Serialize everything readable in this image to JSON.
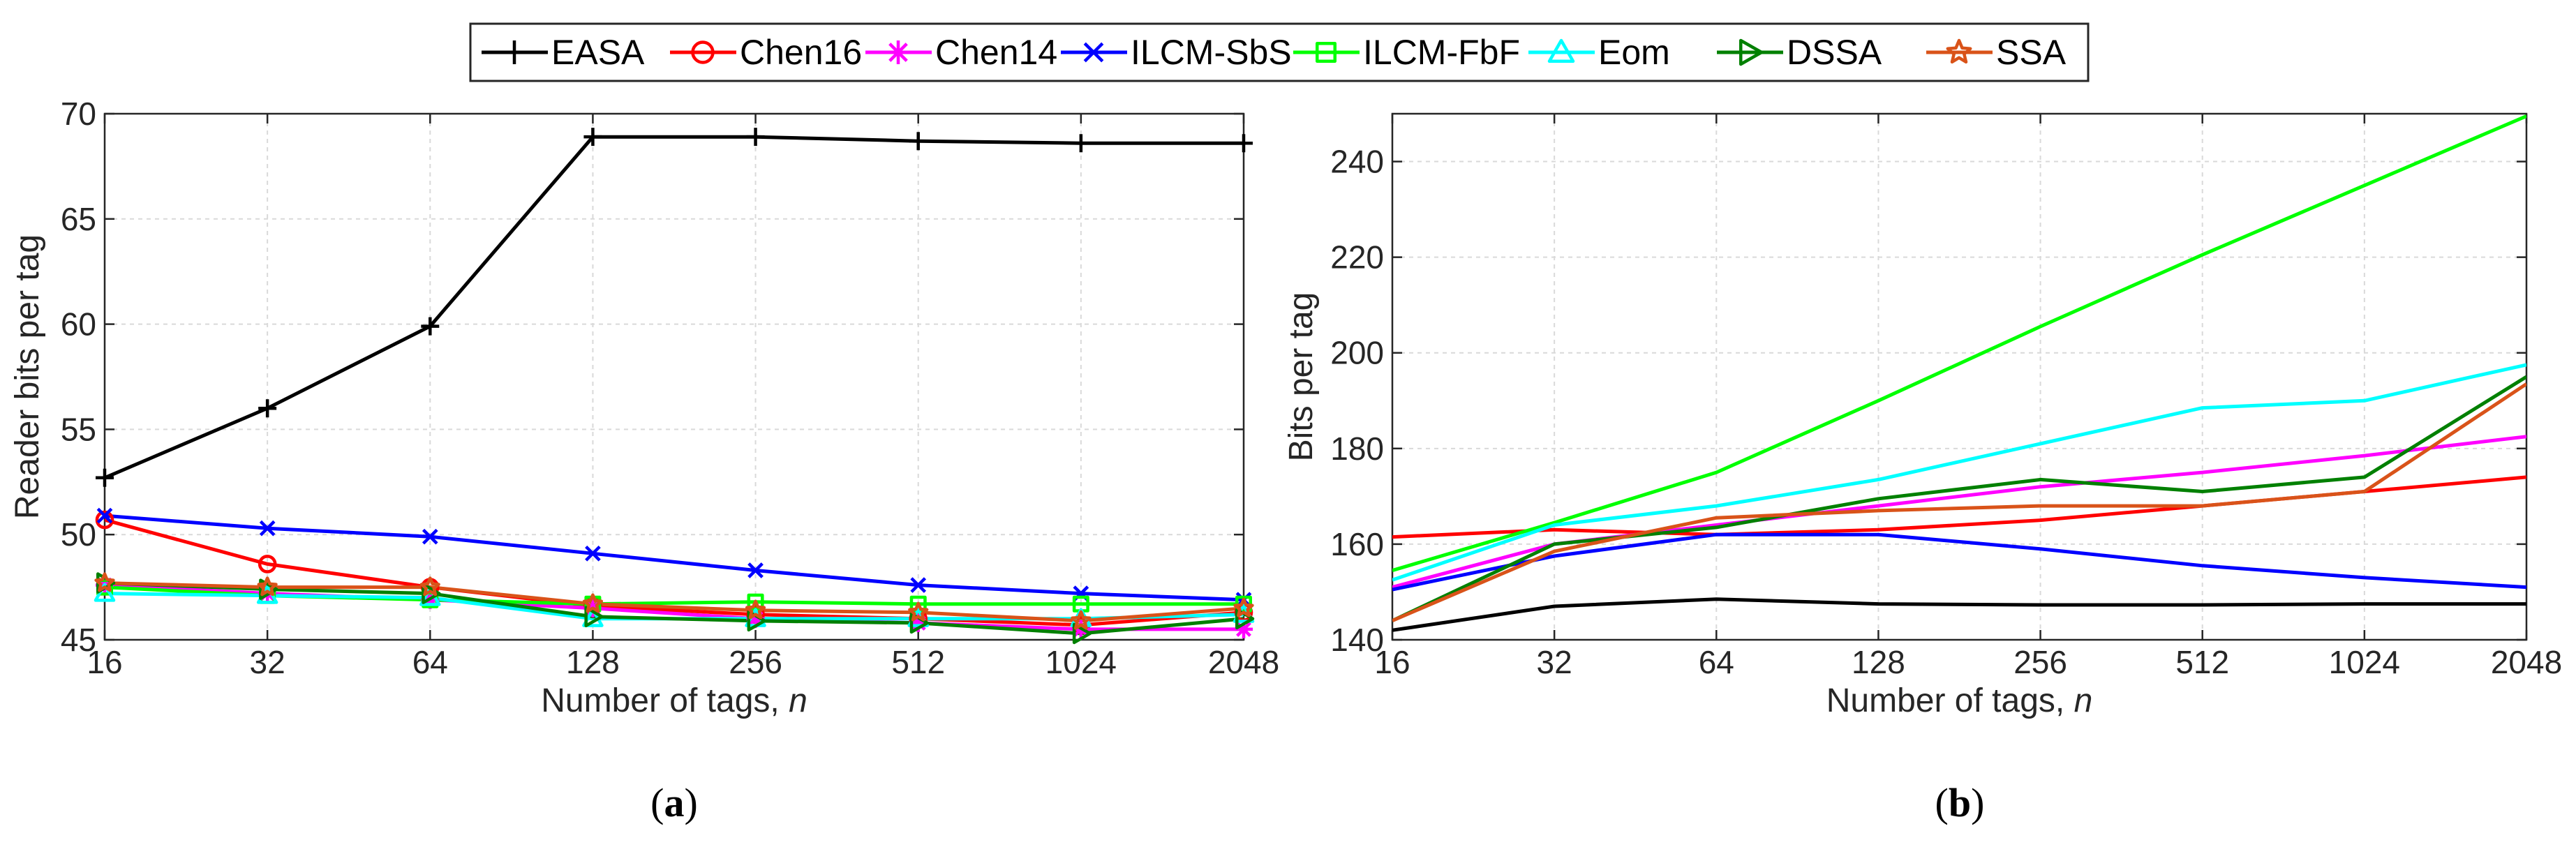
{
  "chart_data": [
    {
      "type": "line",
      "panel": "(a)",
      "xlabel": "Number of tags,",
      "xlabel_var": "n",
      "ylabel": "Reader bits per tag",
      "categories": [
        "16",
        "32",
        "64",
        "128",
        "256",
        "512",
        "1024",
        "2048"
      ],
      "ylim": [
        45,
        70
      ],
      "yticks": [
        45,
        50,
        55,
        60,
        65,
        70
      ],
      "grid": true,
      "markers": true,
      "series": [
        {
          "name": "EASA",
          "values": [
            52.7,
            56.0,
            59.9,
            68.9,
            68.9,
            68.7,
            68.6,
            68.6
          ]
        },
        {
          "name": "Chen16",
          "values": [
            50.7,
            48.6,
            47.5,
            46.6,
            46.2,
            46.0,
            45.7,
            46.3
          ]
        },
        {
          "name": "Chen14",
          "values": [
            47.6,
            47.2,
            46.9,
            46.5,
            46.0,
            45.8,
            45.5,
            45.5
          ]
        },
        {
          "name": "ILCM-SbS",
          "values": [
            50.9,
            50.3,
            49.9,
            49.1,
            48.3,
            47.6,
            47.2,
            46.9
          ]
        },
        {
          "name": "ILCM-FbF",
          "values": [
            47.5,
            47.1,
            46.9,
            46.7,
            46.8,
            46.7,
            46.7,
            46.7
          ]
        },
        {
          "name": "Eom",
          "values": [
            47.2,
            47.1,
            47.0,
            46.0,
            46.0,
            46.0,
            46.0,
            46.2
          ]
        },
        {
          "name": "DSSA",
          "values": [
            47.7,
            47.4,
            47.2,
            46.1,
            45.9,
            45.8,
            45.3,
            46.0
          ]
        },
        {
          "name": "SSA",
          "values": [
            47.7,
            47.5,
            47.5,
            46.7,
            46.4,
            46.3,
            45.9,
            46.5
          ]
        }
      ]
    },
    {
      "type": "line",
      "panel": "(b)",
      "xlabel": "Number of tags,",
      "xlabel_var": "n",
      "ylabel": "Bits per tag",
      "categories": [
        "16",
        "32",
        "64",
        "128",
        "256",
        "512",
        "1024",
        "2048"
      ],
      "ylim": [
        140,
        250
      ],
      "yticks": [
        140,
        160,
        180,
        200,
        220,
        240
      ],
      "grid": true,
      "markers": false,
      "series": [
        {
          "name": "EASA",
          "values": [
            142,
            147,
            148.5,
            147.5,
            147.3,
            147.3,
            147.5,
            147.5
          ]
        },
        {
          "name": "Chen16",
          "values": [
            161.5,
            163,
            162,
            163,
            165,
            168,
            171,
            174
          ]
        },
        {
          "name": "Chen14",
          "values": [
            151,
            160,
            164,
            168,
            172,
            175,
            178.5,
            182.5
          ]
        },
        {
          "name": "ILCM-SbS",
          "values": [
            150.5,
            157.5,
            162,
            162,
            159,
            155.5,
            153,
            151
          ]
        },
        {
          "name": "ILCM-FbF",
          "values": [
            154.5,
            164.5,
            175,
            190,
            205.5,
            220.5,
            235,
            249.5
          ]
        },
        {
          "name": "Eom",
          "values": [
            152.5,
            164,
            168,
            173.5,
            181,
            188.5,
            190,
            197.5
          ]
        },
        {
          "name": "DSSA",
          "values": [
            144,
            160,
            163.5,
            169.5,
            173.5,
            171,
            174,
            195
          ]
        },
        {
          "name": "SSA",
          "values": [
            144,
            158.5,
            165.5,
            167,
            168,
            168,
            171,
            193.5
          ]
        }
      ]
    }
  ],
  "legend": [
    {
      "name": "EASA",
      "color": "#000000",
      "marker": "plus"
    },
    {
      "name": "Chen16",
      "color": "#ff0000",
      "marker": "circle"
    },
    {
      "name": "Chen14",
      "color": "#ff00ff",
      "marker": "asterisk"
    },
    {
      "name": "ILCM-SbS",
      "color": "#0000ff",
      "marker": "cross"
    },
    {
      "name": "ILCM-FbF",
      "color": "#00ff00",
      "marker": "square"
    },
    {
      "name": "Eom",
      "color": "#00ffff",
      "marker": "triangle-up"
    },
    {
      "name": "DSSA",
      "color": "#008000",
      "marker": "triangle-right"
    },
    {
      "name": "SSA",
      "color": "#d95319",
      "marker": "star"
    }
  ],
  "panels": [
    {
      "open": "(",
      "letter": "a",
      "close": ")"
    },
    {
      "open": "(",
      "letter": "b",
      "close": ")"
    }
  ]
}
